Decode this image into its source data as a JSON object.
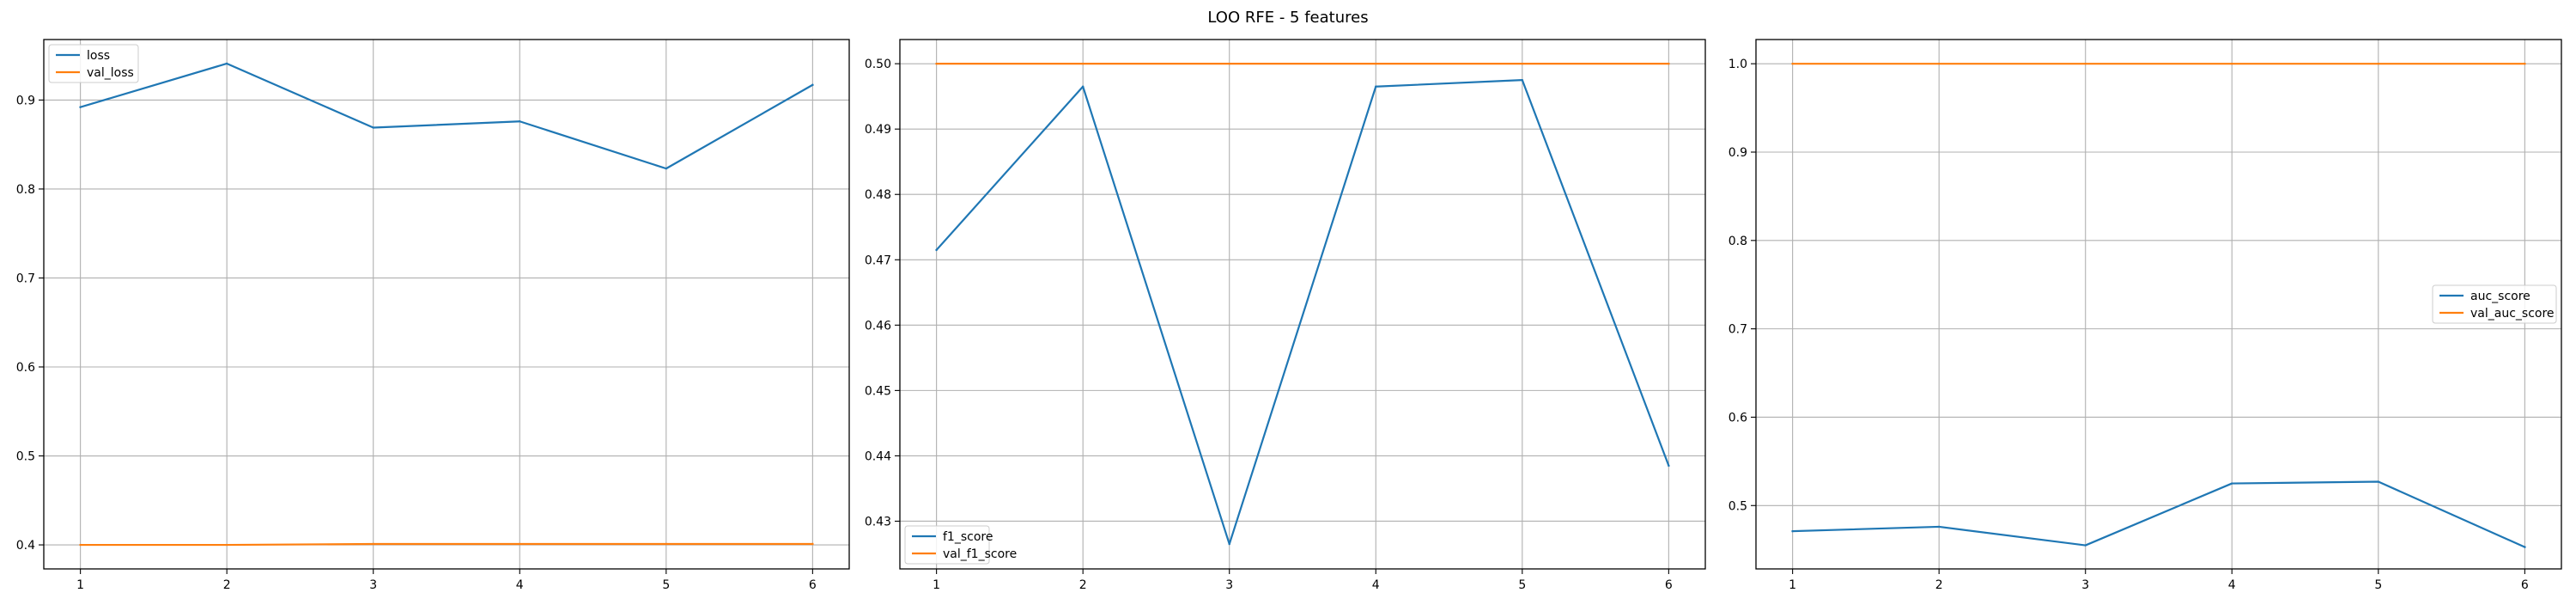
{
  "figure": {
    "title": "LOO RFE - 5 features"
  },
  "chart_data": [
    {
      "type": "line",
      "title": "",
      "xlabel": "",
      "ylabel": "",
      "x": [
        1,
        2,
        3,
        4,
        5,
        6
      ],
      "xticks": [
        1,
        2,
        3,
        4,
        5,
        6
      ],
      "xlim": [
        0.75,
        6.25
      ],
      "ylim": [
        0.373,
        0.968
      ],
      "yticks": [
        0.4,
        0.5,
        0.6,
        0.7,
        0.8,
        0.9
      ],
      "ytick_labels": [
        "0.4",
        "0.5",
        "0.6",
        "0.7",
        "0.8",
        "0.9"
      ],
      "grid": true,
      "legend_loc": "upper left",
      "series": [
        {
          "name": "loss",
          "color": "#1f77b4",
          "values": [
            0.892,
            0.941,
            0.869,
            0.876,
            0.823,
            0.917
          ]
        },
        {
          "name": "val_loss",
          "color": "#ff7f0e",
          "values": [
            0.4,
            0.4,
            0.401,
            0.401,
            0.401,
            0.401
          ]
        }
      ]
    },
    {
      "type": "line",
      "title": "",
      "xlabel": "",
      "ylabel": "",
      "x": [
        1,
        2,
        3,
        4,
        5,
        6
      ],
      "xticks": [
        1,
        2,
        3,
        4,
        5,
        6
      ],
      "xlim": [
        0.75,
        6.25
      ],
      "ylim": [
        0.4227,
        0.5037
      ],
      "yticks": [
        0.43,
        0.44,
        0.45,
        0.46,
        0.47,
        0.48,
        0.49,
        0.5
      ],
      "ytick_labels": [
        "0.43",
        "0.44",
        "0.45",
        "0.46",
        "0.47",
        "0.48",
        "0.49",
        "0.50"
      ],
      "grid": true,
      "legend_loc": "lower left",
      "series": [
        {
          "name": "f1_score",
          "color": "#1f77b4",
          "values": [
            0.4715,
            0.4965,
            0.4265,
            0.4965,
            0.4975,
            0.4385
          ]
        },
        {
          "name": "val_f1_score",
          "color": "#ff7f0e",
          "values": [
            0.5,
            0.5,
            0.5,
            0.5,
            0.5,
            0.5
          ]
        }
      ]
    },
    {
      "type": "line",
      "title": "",
      "xlabel": "",
      "ylabel": "",
      "x": [
        1,
        2,
        3,
        4,
        5,
        6
      ],
      "xticks": [
        1,
        2,
        3,
        4,
        5,
        6
      ],
      "xlim": [
        0.75,
        6.25
      ],
      "ylim": [
        0.4283,
        1.0274
      ],
      "yticks": [
        0.5,
        0.6,
        0.7,
        0.8,
        0.9,
        1.0
      ],
      "ytick_labels": [
        "0.5",
        "0.6",
        "0.7",
        "0.8",
        "0.9",
        "1.0"
      ],
      "grid": true,
      "legend_loc": "center right",
      "series": [
        {
          "name": "auc_score",
          "color": "#1f77b4",
          "values": [
            0.471,
            0.476,
            0.455,
            0.525,
            0.527,
            0.453
          ]
        },
        {
          "name": "val_auc_score",
          "color": "#ff7f0e",
          "values": [
            1.0,
            1.0,
            1.0,
            1.0,
            1.0,
            1.0
          ]
        }
      ]
    }
  ]
}
